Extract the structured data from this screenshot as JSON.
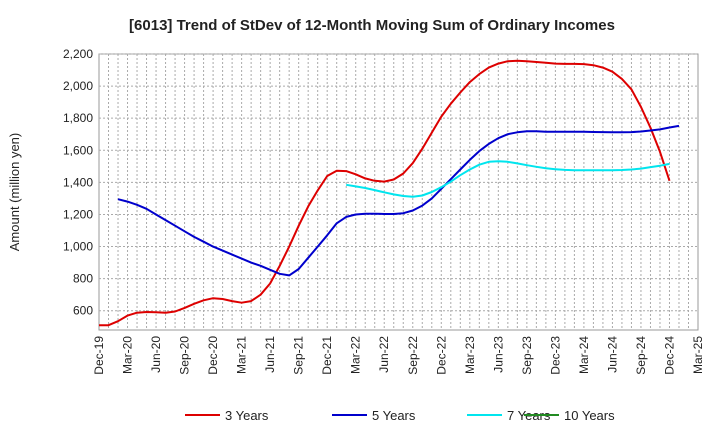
{
  "chart_data": {
    "type": "line",
    "title": "[6013]  Trend of StDev of 12-Month Moving Sum of Ordinary Incomes",
    "ylabel": "Amount (million yen)",
    "xlabel": "",
    "ylim": [
      480,
      2200
    ],
    "y_ticks": [
      600,
      800,
      1000,
      1200,
      1400,
      1600,
      1800,
      2000,
      2200
    ],
    "y_tick_labels": [
      "600",
      "800",
      "1,000",
      "1,200",
      "1,400",
      "1,600",
      "1,800",
      "2,000",
      "2,200"
    ],
    "x_ticks": [
      "Dec-19",
      "Mar-20",
      "Jun-20",
      "Sep-20",
      "Dec-20",
      "Mar-21",
      "Jun-21",
      "Sep-21",
      "Dec-21",
      "Mar-22",
      "Jun-22",
      "Sep-22",
      "Dec-22",
      "Mar-23",
      "Jun-23",
      "Sep-23",
      "Dec-23",
      "Mar-24",
      "Jun-24",
      "Sep-24",
      "Dec-24",
      "Mar-25"
    ],
    "grid": true,
    "legend_position": "bottom",
    "series": [
      {
        "name": "3 Years",
        "color": "#dd0000",
        "start": "Dec-19",
        "values": [
          510,
          510,
          535,
          570,
          588,
          592,
          590,
          588,
          595,
          618,
          643,
          665,
          678,
          673,
          660,
          650,
          660,
          700,
          770,
          880,
          1000,
          1130,
          1250,
          1350,
          1440,
          1472,
          1470,
          1450,
          1425,
          1410,
          1405,
          1418,
          1455,
          1520,
          1610,
          1710,
          1810,
          1890,
          1960,
          2025,
          2075,
          2115,
          2140,
          2155,
          2158,
          2155,
          2150,
          2145,
          2140,
          2138,
          2138,
          2137,
          2130,
          2115,
          2090,
          2045,
          1980,
          1870,
          1740,
          1590,
          1410
        ]
      },
      {
        "name": "5 Years",
        "color": "#0000cc",
        "start": "Feb-20",
        "values": [
          1295,
          1280,
          1260,
          1235,
          1200,
          1165,
          1130,
          1095,
          1060,
          1030,
          1000,
          975,
          950,
          925,
          900,
          880,
          855,
          830,
          820,
          860,
          930,
          1000,
          1070,
          1145,
          1185,
          1200,
          1205,
          1205,
          1203,
          1203,
          1208,
          1225,
          1255,
          1300,
          1360,
          1420,
          1480,
          1540,
          1595,
          1640,
          1675,
          1700,
          1712,
          1718,
          1718,
          1716,
          1715,
          1715,
          1715,
          1715,
          1714,
          1713,
          1712,
          1712,
          1713,
          1717,
          1723,
          1730,
          1742,
          1752
        ]
      },
      {
        "name": "7 Years",
        "color": "#00e5ee",
        "start": "Feb-22",
        "values": [
          1385,
          1375,
          1365,
          1352,
          1338,
          1325,
          1315,
          1310,
          1318,
          1340,
          1370,
          1405,
          1445,
          1480,
          1510,
          1528,
          1532,
          1528,
          1518,
          1507,
          1497,
          1488,
          1482,
          1478,
          1476,
          1476,
          1476,
          1476,
          1476,
          1477,
          1480,
          1486,
          1495,
          1504,
          1515
        ]
      },
      {
        "name": "10 Years",
        "color": "#228b22",
        "start": "Dec-24",
        "values": []
      }
    ]
  }
}
